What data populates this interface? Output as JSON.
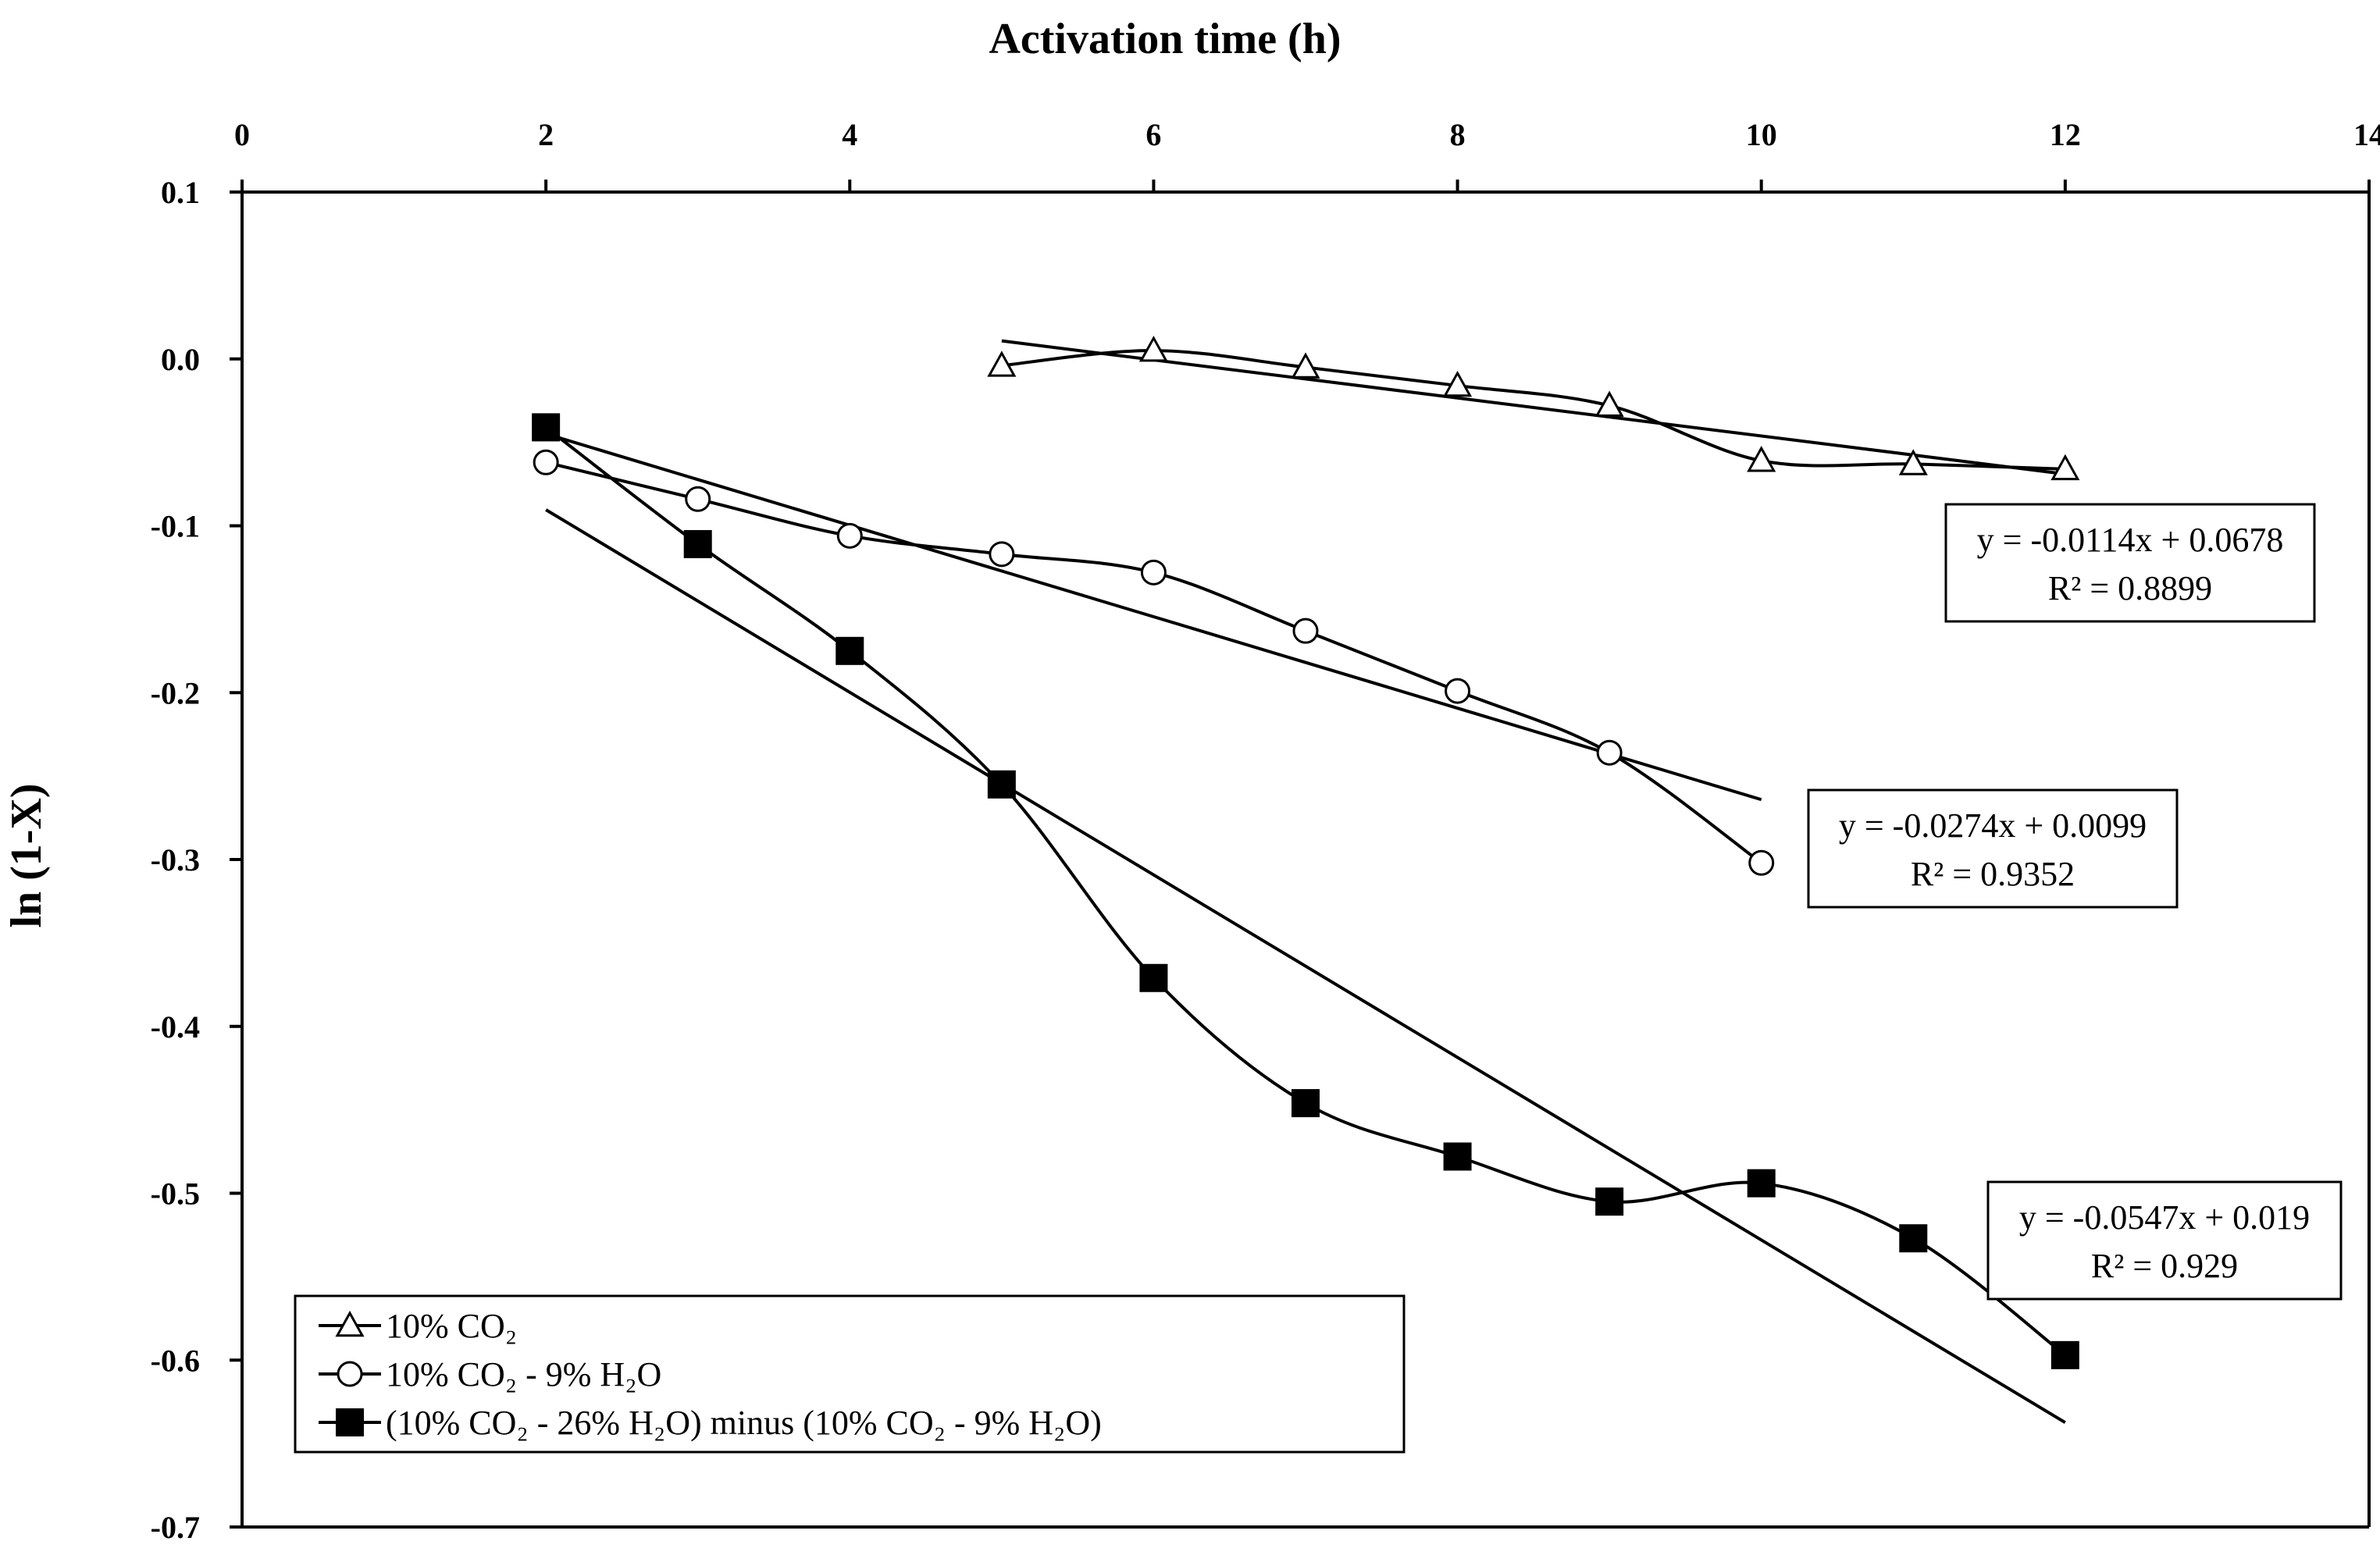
{
  "chart_data": {
    "type": "scatter",
    "title": "",
    "xlabel": "Activation time (h)",
    "ylabel": "ln (1-X)",
    "xlim": [
      0,
      14
    ],
    "ylim": [
      -0.7,
      0.1
    ],
    "xticks": [
      0,
      2,
      4,
      6,
      8,
      10,
      12,
      14
    ],
    "xtick_labels": [
      "0",
      "2",
      "4",
      "6",
      "8",
      "10",
      "12",
      "14"
    ],
    "yticks": [
      0.1,
      0.0,
      -0.1,
      -0.2,
      -0.3,
      -0.4,
      -0.5,
      -0.6,
      -0.7
    ],
    "ytick_labels": [
      "0.1",
      "0.0",
      "-0.1",
      "-0.2",
      "-0.3",
      "-0.4",
      "-0.5",
      "-0.6",
      "-0.7"
    ],
    "x_axis_position": "top",
    "grid": false,
    "legend_position": "bottom-left",
    "series": [
      {
        "name": "10% CO₂",
        "marker": "triangle-open",
        "x": [
          5,
          6,
          7,
          8,
          9,
          10,
          11,
          12
        ],
        "y": [
          -0.004,
          0.005,
          -0.005,
          -0.016,
          -0.028,
          -0.061,
          -0.063,
          -0.066
        ],
        "trendline": {
          "slope": -0.0114,
          "intercept": 0.0678,
          "x_range": [
            5,
            12
          ]
        },
        "equation": "y = -0.0114x + 0.0678",
        "r2": "R² = 0.8899"
      },
      {
        "name": "10% CO₂ - 9% H₂O",
        "marker": "circle-open",
        "x": [
          2,
          3,
          4,
          5,
          6,
          7,
          8,
          9,
          10
        ],
        "y": [
          -0.062,
          -0.084,
          -0.106,
          -0.117,
          -0.128,
          -0.163,
          -0.199,
          -0.236,
          -0.302
        ],
        "trendline": {
          "slope": -0.0274,
          "intercept": 0.0099,
          "x_range": [
            2,
            10
          ]
        },
        "equation": "y = -0.0274x + 0.0099",
        "r2": "R² = 0.9352"
      },
      {
        "name": "(10% CO₂ - 26% H₂O) minus (10% CO₂ - 9% H₂O)",
        "marker": "square-filled",
        "x": [
          2,
          3,
          4,
          5,
          6,
          7,
          8,
          9,
          10,
          11,
          12
        ],
        "y": [
          -0.041,
          -0.111,
          -0.175,
          -0.255,
          -0.371,
          -0.446,
          -0.478,
          -0.505,
          -0.494,
          -0.527,
          -0.597
        ],
        "trendline": {
          "slope": -0.0547,
          "intercept": 0.019,
          "x_range": [
            2,
            12
          ]
        },
        "equation": "y = -0.0547x + 0.019",
        "r2": "R² = 0.929"
      }
    ]
  }
}
